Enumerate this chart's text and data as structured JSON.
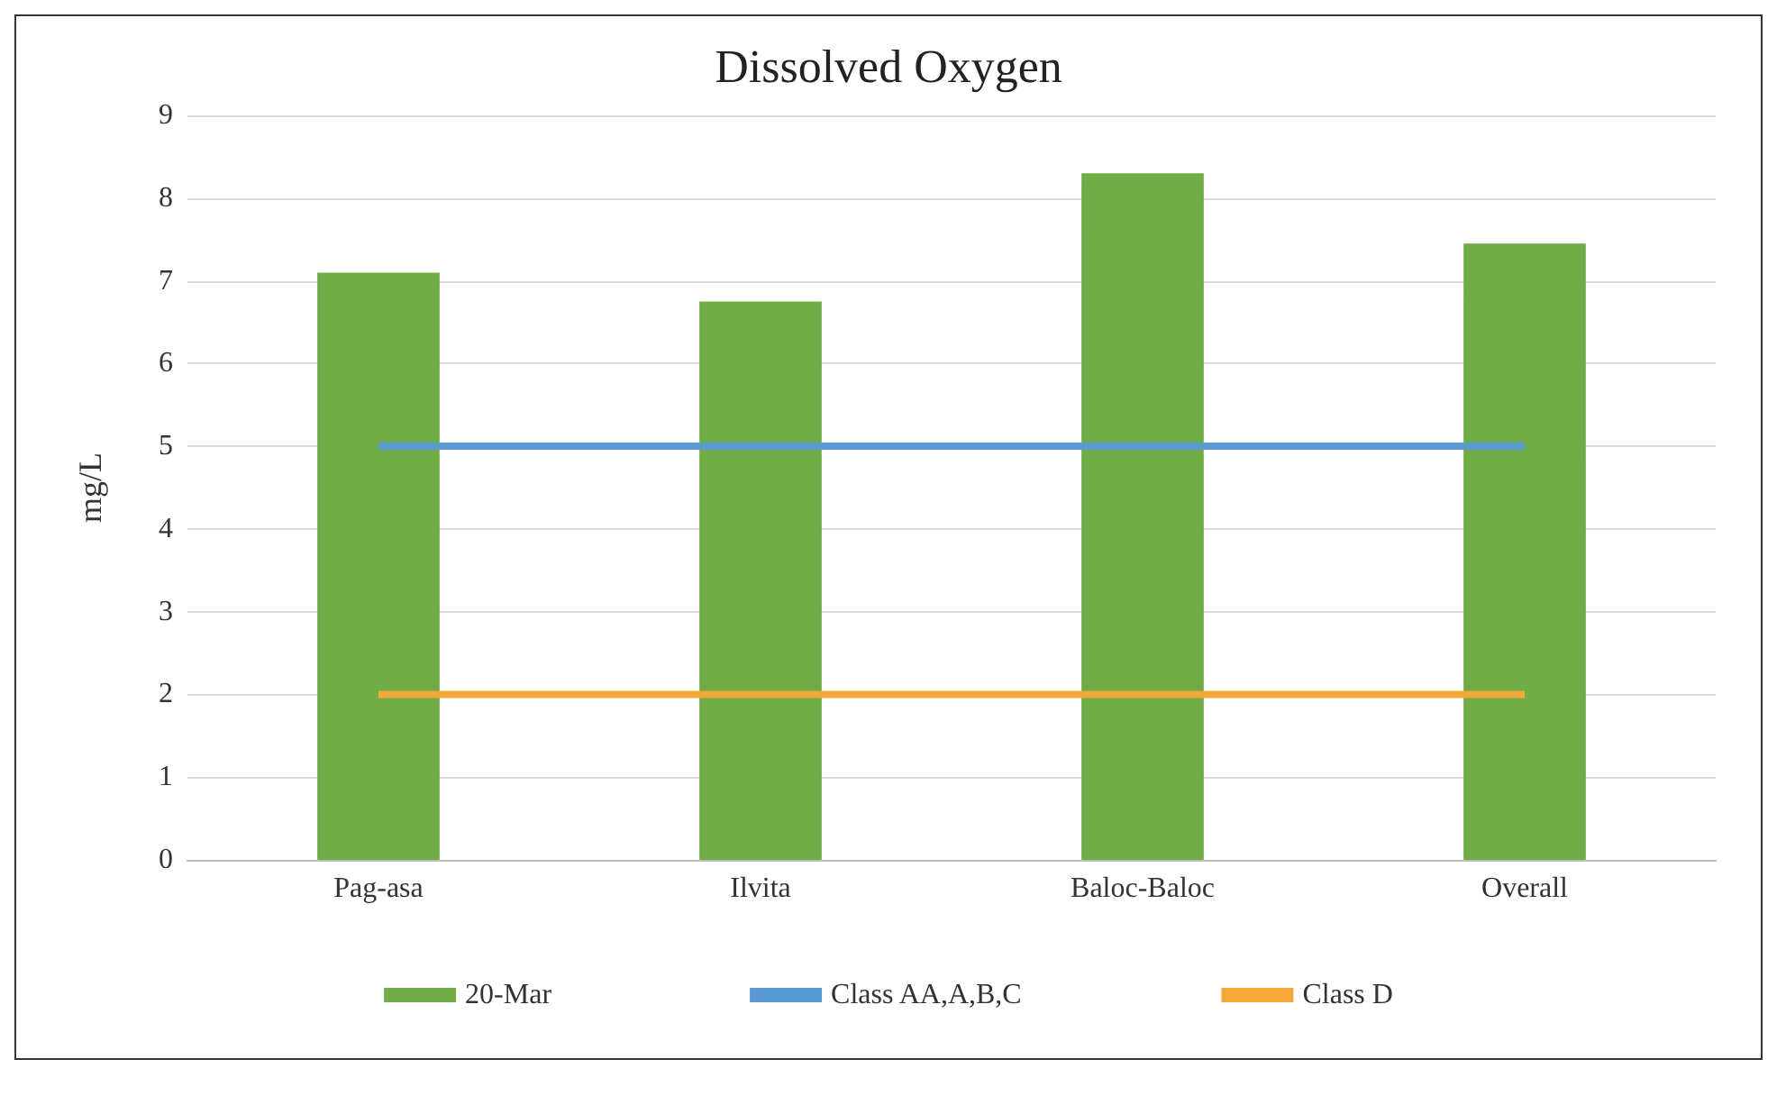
{
  "chart_data": {
    "type": "bar",
    "title": "Dissolved Oxygen",
    "ylabel": "mg/L",
    "categories": [
      "Pag-asa",
      "Ilvita",
      "Baloc-Baloc",
      "Overall"
    ],
    "series": [
      {
        "name": "20-Mar",
        "color": "#70ad47",
        "values": [
          7.1,
          6.75,
          8.3,
          7.45
        ]
      },
      {
        "name": "Class AA,A,B,C",
        "type": "line",
        "color": "#5b9bd5",
        "values": [
          5,
          5,
          5,
          5
        ]
      },
      {
        "name": "Class D",
        "type": "line",
        "color": "#f4a83a",
        "values": [
          2,
          2,
          2,
          2
        ]
      }
    ],
    "ylim": [
      0,
      9
    ],
    "yticks": [
      0,
      1,
      2,
      3,
      4,
      5,
      6,
      7,
      8,
      9
    ],
    "grid": "y",
    "legend": "bottom",
    "marker": "none"
  }
}
